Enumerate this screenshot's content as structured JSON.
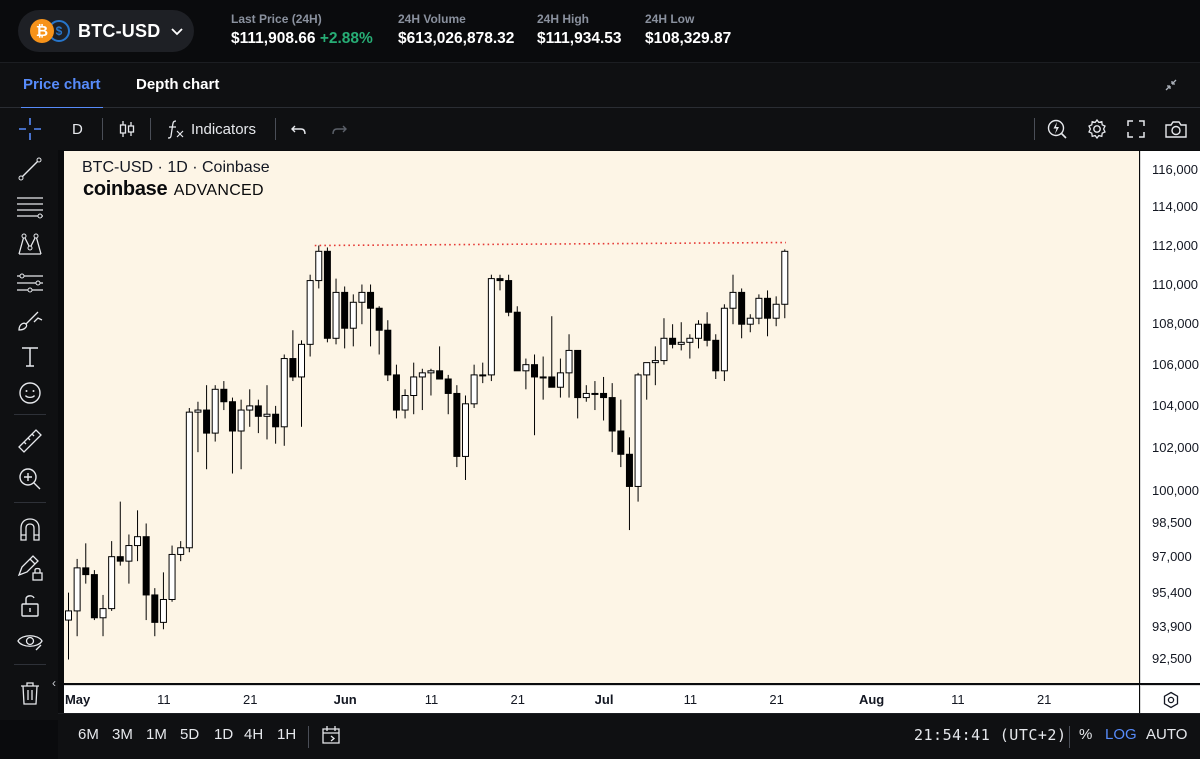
{
  "header": {
    "pair": "BTC-USD",
    "base_icon": "bitcoin-icon",
    "quote_icon": "usd-coin-icon",
    "stats": [
      {
        "label": "Last Price (24H)",
        "value": "$111,908.66",
        "change": "+2.88%"
      },
      {
        "label": "24H Volume",
        "value": "$613,026,878.32"
      },
      {
        "label": "24H High",
        "value": "$111,934.53"
      },
      {
        "label": "24H Low",
        "value": "$108,329.87"
      }
    ]
  },
  "tabs": [
    {
      "label": "Price chart",
      "active": true
    },
    {
      "label": "Depth chart",
      "active": false
    }
  ],
  "toolbar": {
    "interval": "D",
    "indicators_label": "Indicators"
  },
  "chart": {
    "title": "BTC-USD · 1D · Coinbase",
    "brand_name": "coinbase",
    "brand_sub": "ADVANCED",
    "price_labels": [
      "116,000",
      "114,000",
      "112,000",
      "110,000",
      "108,000",
      "106,000",
      "104,000",
      "102,000",
      "100,000",
      "98,500",
      "97,000",
      "95,400",
      "93,900",
      "92,500"
    ],
    "time_labels": [
      {
        "text": "May",
        "bold": true
      },
      {
        "text": "11",
        "bold": false
      },
      {
        "text": "21",
        "bold": false
      },
      {
        "text": "Jun",
        "bold": true
      },
      {
        "text": "11",
        "bold": false
      },
      {
        "text": "21",
        "bold": false
      },
      {
        "text": "Jul",
        "bold": true
      },
      {
        "text": "11",
        "bold": false
      },
      {
        "text": "21",
        "bold": false
      },
      {
        "text": "Aug",
        "bold": true
      },
      {
        "text": "11",
        "bold": false
      },
      {
        "text": "21",
        "bold": false
      }
    ]
  },
  "chart_data": {
    "type": "candlestick",
    "title": "BTC-USD · 1D · Coinbase",
    "y_scale": "log",
    "ylim": [
      91500,
      117000
    ],
    "first_date": "2025-04-30",
    "resistance_level": 112000,
    "colors": {
      "up": "#ffffff",
      "down": "#000000",
      "wick": "#000000",
      "resistance": "#e53935"
    },
    "candles": [
      [
        94200,
        95400,
        92500,
        94600
      ],
      [
        94600,
        96900,
        93500,
        96500
      ],
      [
        96500,
        97600,
        95800,
        96200
      ],
      [
        96200,
        96400,
        94200,
        94300
      ],
      [
        94300,
        95300,
        93500,
        94700
      ],
      [
        94700,
        97700,
        94600,
        97000
      ],
      [
        97000,
        99500,
        96600,
        96800
      ],
      [
        96800,
        98000,
        95800,
        97500
      ],
      [
        97500,
        99100,
        96800,
        97900
      ],
      [
        97900,
        98500,
        94200,
        95300
      ],
      [
        95300,
        95600,
        93500,
        94100
      ],
      [
        94100,
        96300,
        93800,
        95100
      ],
      [
        95100,
        97500,
        95000,
        97100
      ],
      [
        97100,
        97700,
        96800,
        97400
      ],
      [
        97400,
        103900,
        97200,
        103700
      ],
      [
        103700,
        104200,
        101800,
        103800
      ],
      [
        103800,
        105000,
        101000,
        102700
      ],
      [
        102700,
        105000,
        102300,
        104800
      ],
      [
        104800,
        105200,
        103800,
        104200
      ],
      [
        104200,
        104400,
        100800,
        102800
      ],
      [
        102800,
        104300,
        101000,
        103800
      ],
      [
        103800,
        104800,
        103000,
        104000
      ],
      [
        104000,
        104300,
        102700,
        103500
      ],
      [
        103500,
        105000,
        102400,
        103600
      ],
      [
        103600,
        104000,
        102200,
        103000
      ],
      [
        103000,
        106500,
        102100,
        106300
      ],
      [
        106300,
        107700,
        105200,
        105400
      ],
      [
        105400,
        107200,
        103000,
        107000
      ],
      [
        107000,
        110500,
        106400,
        110200
      ],
      [
        110200,
        112000,
        109800,
        111700
      ],
      [
        111700,
        111900,
        107100,
        107300
      ],
      [
        107300,
        110300,
        107000,
        109600
      ],
      [
        109600,
        109900,
        106800,
        107800
      ],
      [
        107800,
        109500,
        106900,
        109100
      ],
      [
        109100,
        110000,
        108000,
        109600
      ],
      [
        109600,
        110000,
        106900,
        108800
      ],
      [
        108800,
        108900,
        106500,
        107700
      ],
      [
        107700,
        108200,
        105200,
        105500
      ],
      [
        105500,
        106000,
        103400,
        103800
      ],
      [
        103800,
        104800,
        103400,
        104500
      ],
      [
        104500,
        106100,
        103600,
        105400
      ],
      [
        105400,
        105800,
        103800,
        105600
      ],
      [
        105600,
        105800,
        104500,
        105700
      ],
      [
        105700,
        106900,
        105300,
        105300
      ],
      [
        105300,
        105500,
        103600,
        104600
      ],
      [
        104600,
        105000,
        101100,
        101600
      ],
      [
        101600,
        104500,
        100500,
        104100
      ],
      [
        104100,
        106000,
        103900,
        105500
      ],
      [
        105500,
        106100,
        105100,
        105500
      ],
      [
        105500,
        110500,
        105200,
        110300
      ],
      [
        110300,
        110500,
        109700,
        110200
      ],
      [
        110200,
        110500,
        108400,
        108600
      ],
      [
        108600,
        108900,
        105800,
        105700
      ],
      [
        105700,
        106300,
        104800,
        106000
      ],
      [
        106000,
        106500,
        102600,
        105400
      ],
      [
        105400,
        106400,
        104300,
        105400
      ],
      [
        105400,
        108400,
        104900,
        104900
      ],
      [
        104900,
        106300,
        104400,
        105600
      ],
      [
        105600,
        107500,
        104400,
        106700
      ],
      [
        106700,
        106700,
        103400,
        104400
      ],
      [
        104400,
        105000,
        104200,
        104600
      ],
      [
        104600,
        105200,
        103800,
        104600
      ],
      [
        104600,
        105400,
        103300,
        104400
      ],
      [
        104400,
        105100,
        101800,
        102800
      ],
      [
        102800,
        104300,
        101100,
        101700
      ],
      [
        101700,
        102500,
        98200,
        100200
      ],
      [
        100200,
        105600,
        99500,
        105500
      ],
      [
        105500,
        106000,
        104300,
        106100
      ],
      [
        106100,
        106900,
        105000,
        106200
      ],
      [
        106200,
        108300,
        106000,
        107300
      ],
      [
        107300,
        108000,
        106800,
        107000
      ],
      [
        107000,
        108100,
        106700,
        107100
      ],
      [
        107100,
        107500,
        106300,
        107300
      ],
      [
        107300,
        108200,
        106800,
        108000
      ],
      [
        108000,
        108600,
        106900,
        107200
      ],
      [
        107200,
        107500,
        105300,
        105700
      ],
      [
        105700,
        109000,
        105200,
        108800
      ],
      [
        108800,
        110500,
        108000,
        109600
      ],
      [
        109600,
        109800,
        107300,
        108000
      ],
      [
        108000,
        108500,
        107600,
        108300
      ],
      [
        108300,
        109500,
        108000,
        109300
      ],
      [
        109300,
        109700,
        107400,
        108300
      ],
      [
        108300,
        109400,
        107900,
        109000
      ],
      [
        109000,
        111800,
        108300,
        111700
      ]
    ]
  },
  "bottombar": {
    "ranges": [
      "6M",
      "3M",
      "1M",
      "5D",
      "1D",
      "4H",
      "1H"
    ],
    "clock": "21:54:41 (UTC+2)",
    "percent": "%",
    "log": "LOG",
    "auto": "AUTO"
  }
}
